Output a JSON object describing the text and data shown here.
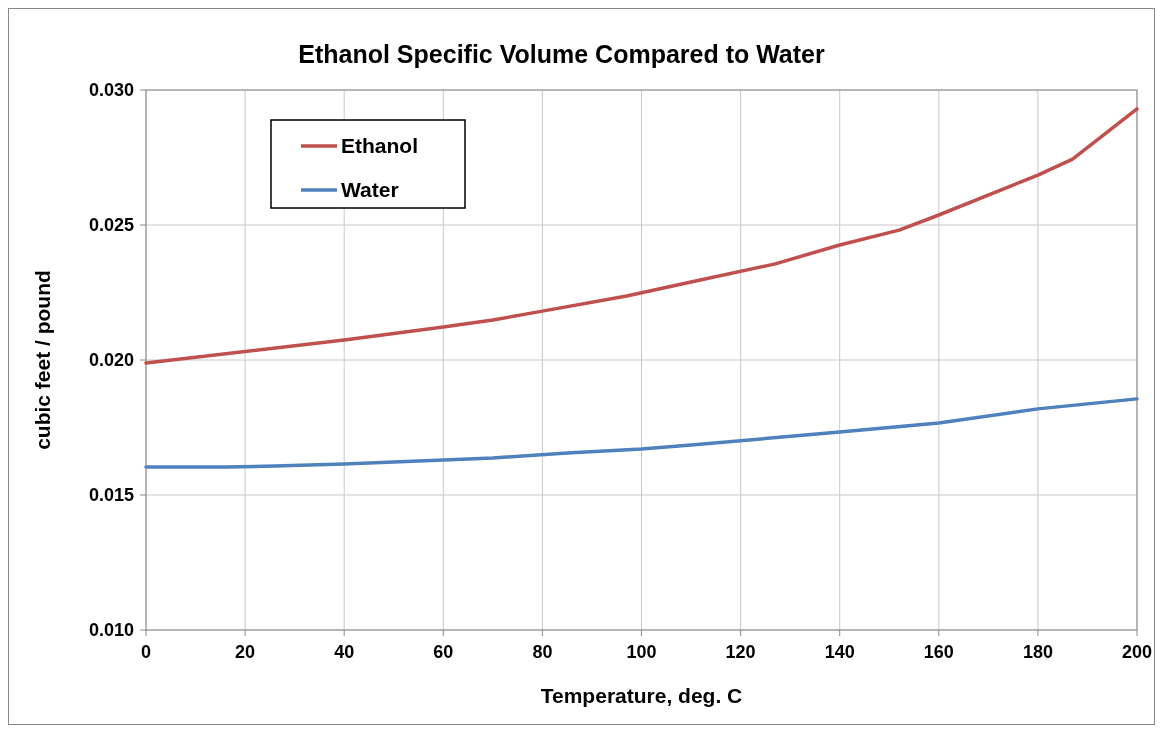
{
  "chart_data": {
    "type": "line",
    "title": "Ethanol Specific Volume Compared to Water",
    "xlabel": "Temperature, deg. C",
    "ylabel": "cubic feet / pound",
    "xlim": [
      0,
      200
    ],
    "xticks": [
      0,
      20,
      40,
      60,
      80,
      100,
      120,
      140,
      160,
      180,
      200
    ],
    "ylim": [
      0.01,
      0.03
    ],
    "yticks": [
      {
        "value": 0.01,
        "label": "0.010"
      },
      {
        "value": 0.015,
        "label": "0.015"
      },
      {
        "value": 0.02,
        "label": "0.020"
      },
      {
        "value": 0.025,
        "label": "0.025"
      },
      {
        "value": 0.03,
        "label": "0.030"
      }
    ],
    "grid": true,
    "legend": "top left",
    "marker": "none",
    "line_style": "solid",
    "series": [
      {
        "name": "Ethanol",
        "color": "#c0504d",
        "x": [
          0,
          40,
          60,
          70,
          80,
          97,
          110,
          127,
          140,
          152,
          160,
          180,
          187,
          200
        ],
        "values": [
          0.01989,
          0.02074,
          0.02122,
          0.02148,
          0.02181,
          0.02237,
          0.02289,
          0.02356,
          0.02426,
          0.02481,
          0.02537,
          0.02685,
          0.02744,
          0.0293
        ]
      },
      {
        "name": "Water",
        "color": "#4f81bd",
        "x": [
          0,
          16,
          26,
          40,
          55,
          70,
          85,
          100,
          110,
          140,
          160,
          180,
          200
        ],
        "values": [
          0.01604,
          0.01604,
          0.01607,
          0.01615,
          0.01626,
          0.01637,
          0.01656,
          0.0167,
          0.01685,
          0.01733,
          0.01767,
          0.01819,
          0.01856
        ]
      }
    ]
  }
}
